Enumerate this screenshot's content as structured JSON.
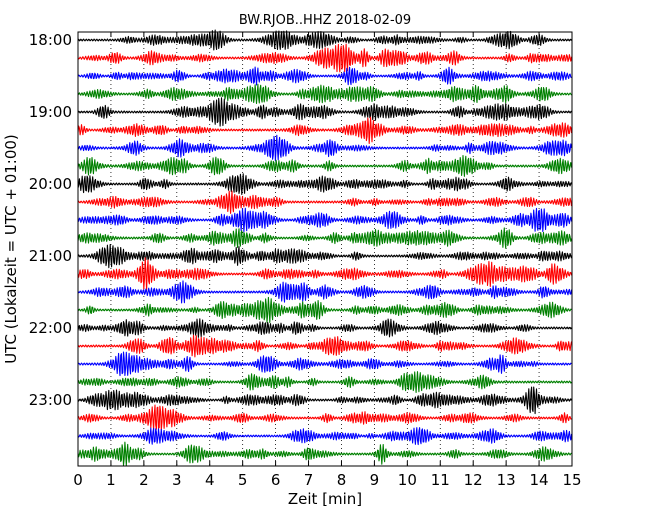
{
  "chart_data": {
    "type": "line",
    "title": "BW.RJOB..HHZ 2018-02-09",
    "xlabel": "Zeit  [min]",
    "ylabel": "UTC (Lokalzeit = UTC + 01:00)",
    "xlim": [
      0,
      15
    ],
    "x_ticks": [
      0,
      1,
      2,
      3,
      4,
      5,
      6,
      7,
      8,
      9,
      10,
      11,
      12,
      13,
      14,
      15
    ],
    "x_tick_labels": [
      "0",
      "1",
      "2",
      "3",
      "4",
      "5",
      "6",
      "7",
      "8",
      "9",
      "10",
      "11",
      "12",
      "13",
      "14",
      "15"
    ],
    "y_tick_labels": [
      "18:00",
      "19:00",
      "20:00",
      "21:00",
      "22:00",
      "23:00"
    ],
    "traces_per_hour": 4,
    "start_hour": 18,
    "trace_count": 24,
    "trace_colors": [
      "#000000",
      "#ff0000",
      "#0000ff",
      "#008000"
    ],
    "vertical_grid": "dotted"
  }
}
